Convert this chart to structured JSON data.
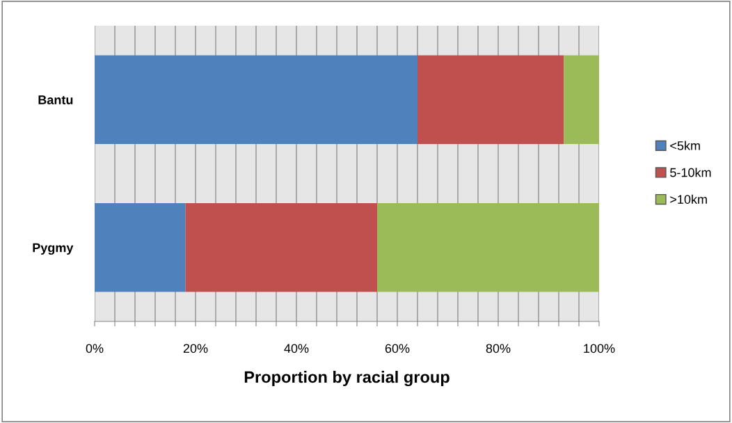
{
  "chart_data": {
    "type": "bar",
    "orientation": "horizontal",
    "stacked": true,
    "xlabel": "Proportion by racial group",
    "categories": [
      "Bantu",
      "Pygmy"
    ],
    "series": [
      {
        "name": "<5km",
        "color": "#4f81bd",
        "values": [
          64,
          18
        ]
      },
      {
        "name": "5-10km",
        "color": "#c0504d",
        "values": [
          29,
          38
        ]
      },
      {
        "name": ">10km",
        "color": "#9bbb59",
        "values": [
          7,
          44
        ]
      }
    ],
    "xlim": [
      0,
      100
    ],
    "xticks": [
      {
        "value": 0,
        "label": "0%"
      },
      {
        "value": 4,
        "label": null
      },
      {
        "value": 8,
        "label": null
      },
      {
        "value": 12,
        "label": null
      },
      {
        "value": 16,
        "label": null
      },
      {
        "value": 20,
        "label": "20%"
      },
      {
        "value": 24,
        "label": null
      },
      {
        "value": 28,
        "label": null
      },
      {
        "value": 32,
        "label": null
      },
      {
        "value": 36,
        "label": null
      },
      {
        "value": 40,
        "label": "40%"
      },
      {
        "value": 44,
        "label": null
      },
      {
        "value": 48,
        "label": null
      },
      {
        "value": 52,
        "label": null
      },
      {
        "value": 56,
        "label": null
      },
      {
        "value": 60,
        "label": "60%"
      },
      {
        "value": 64,
        "label": null
      },
      {
        "value": 68,
        "label": null
      },
      {
        "value": 72,
        "label": null
      },
      {
        "value": 76,
        "label": null
      },
      {
        "value": 80,
        "label": "80%"
      },
      {
        "value": 84,
        "label": null
      },
      {
        "value": 88,
        "label": null
      },
      {
        "value": 92,
        "label": null
      },
      {
        "value": 96,
        "label": null
      },
      {
        "value": 100,
        "label": "100%"
      }
    ],
    "grid": "x",
    "legend": "right"
  }
}
